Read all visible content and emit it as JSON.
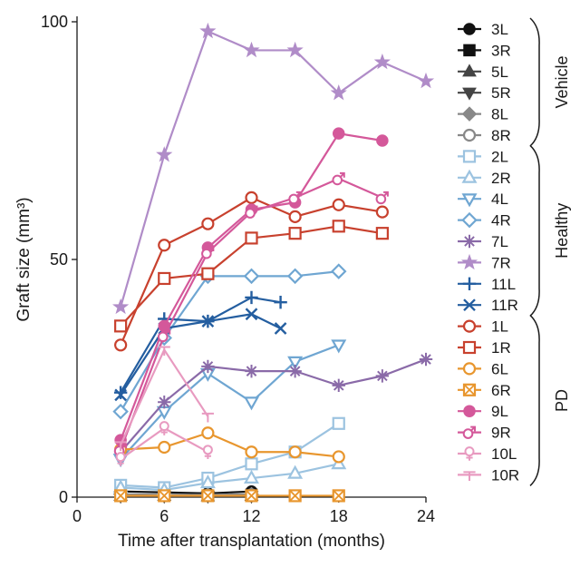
{
  "chart_data": {
    "type": "line",
    "title": "",
    "xlabel": "Time after transplantation (months)",
    "ylabel": "Graft size (mm³)",
    "xlim": [
      0,
      24
    ],
    "ylim": [
      0,
      100
    ],
    "xticks": [
      0,
      6,
      12,
      18,
      24
    ],
    "yticks": [
      0,
      50,
      100
    ],
    "grid": false,
    "legend_position": "right",
    "groups": [
      {
        "name": "Vehicle",
        "series": [
          "3L",
          "3R",
          "5L",
          "5R",
          "8L",
          "8R"
        ]
      },
      {
        "name": "Healthy",
        "series": [
          "2L",
          "2R",
          "4L",
          "4R",
          "7L",
          "7R",
          "11L",
          "11R"
        ]
      },
      {
        "name": "PD",
        "series": [
          "1L",
          "1R",
          "6L",
          "6R",
          "9L",
          "9R",
          "10L",
          "10R"
        ]
      }
    ],
    "series": [
      {
        "name": "3L",
        "color": "#111111",
        "marker": "circle-filled",
        "points": [
          [
            3,
            1.2
          ],
          [
            6,
            1.0
          ],
          [
            9,
            0.8
          ],
          [
            12,
            1.2
          ]
        ]
      },
      {
        "name": "3R",
        "color": "#111111",
        "marker": "square-filled",
        "points": [
          [
            3,
            0.4
          ],
          [
            6,
            0.3
          ],
          [
            9,
            0.3
          ],
          [
            12,
            0.5
          ]
        ]
      },
      {
        "name": "5L",
        "color": "#444444",
        "marker": "triangle-up-filled",
        "points": [
          [
            3,
            0.3
          ],
          [
            6,
            0.3
          ],
          [
            9,
            0.2
          ],
          [
            12,
            0.3
          ]
        ]
      },
      {
        "name": "5R",
        "color": "#444444",
        "marker": "triangle-down-filled",
        "points": [
          [
            3,
            0.2
          ],
          [
            6,
            0.2
          ],
          [
            9,
            0.2
          ],
          [
            12,
            0.2
          ]
        ]
      },
      {
        "name": "8L",
        "color": "#888888",
        "marker": "diamond-filled",
        "points": [
          [
            3,
            0.6
          ],
          [
            6,
            0.5
          ],
          [
            9,
            0.5
          ],
          [
            12,
            0.6
          ]
        ]
      },
      {
        "name": "8R",
        "color": "#888888",
        "marker": "circle-open",
        "points": [
          [
            3,
            0.5
          ],
          [
            6,
            0.4
          ],
          [
            9,
            0.4
          ],
          [
            12,
            0.5
          ]
        ]
      },
      {
        "name": "2L",
        "color": "#9cc3e0",
        "marker": "square-open",
        "points": [
          [
            3,
            2.5
          ],
          [
            6,
            2.0
          ],
          [
            9,
            4.0
          ],
          [
            12,
            7.0
          ],
          [
            15,
            9.5
          ],
          [
            18,
            15.5
          ]
        ]
      },
      {
        "name": "2R",
        "color": "#9cc3e0",
        "marker": "triangle-up-open",
        "points": [
          [
            3,
            2.0
          ],
          [
            6,
            1.5
          ],
          [
            9,
            3.0
          ],
          [
            12,
            4.0
          ],
          [
            15,
            5.0
          ],
          [
            18,
            7.0
          ]
        ]
      },
      {
        "name": "4L",
        "color": "#6fa6d2",
        "marker": "triangle-down-open",
        "points": [
          [
            3,
            8.0
          ],
          [
            6,
            18.0
          ],
          [
            9,
            26.0
          ],
          [
            12,
            20.0
          ],
          [
            15,
            28.5
          ],
          [
            18,
            32.0
          ]
        ]
      },
      {
        "name": "4R",
        "color": "#6fa6d2",
        "marker": "diamond-open",
        "points": [
          [
            3,
            18.0
          ],
          [
            6,
            33.5
          ],
          [
            9,
            46.5
          ],
          [
            12,
            46.5
          ],
          [
            15,
            46.5
          ],
          [
            18,
            47.5
          ]
        ]
      },
      {
        "name": "7L",
        "color": "#8a6aa8",
        "marker": "asterisk",
        "points": [
          [
            3,
            9.5
          ],
          [
            6,
            20.0
          ],
          [
            9,
            27.5
          ],
          [
            12,
            26.5
          ],
          [
            15,
            26.5
          ],
          [
            18,
            23.5
          ],
          [
            21,
            25.5
          ],
          [
            24,
            29.0
          ]
        ]
      },
      {
        "name": "7R",
        "color": "#b08cc8",
        "marker": "star",
        "points": [
          [
            3,
            40.0
          ],
          [
            6,
            72.0
          ],
          [
            9,
            98.0
          ],
          [
            12,
            94.0
          ],
          [
            15,
            94.0
          ],
          [
            18,
            85.0
          ],
          [
            21,
            91.5
          ],
          [
            24,
            87.5
          ]
        ]
      },
      {
        "name": "11L",
        "color": "#245ea0",
        "marker": "plus",
        "points": [
          [
            3,
            22.0
          ],
          [
            6,
            37.5
          ],
          [
            9,
            37.0
          ],
          [
            12,
            42.0
          ],
          [
            14,
            41.0
          ]
        ]
      },
      {
        "name": "11R",
        "color": "#245ea0",
        "marker": "x",
        "points": [
          [
            3,
            21.5
          ],
          [
            6,
            35.5
          ],
          [
            9,
            37.0
          ],
          [
            12,
            38.5
          ],
          [
            14,
            35.5
          ]
        ]
      },
      {
        "name": "1L",
        "color": "#c8412e",
        "marker": "circle-open",
        "points": [
          [
            3,
            32.0
          ],
          [
            6,
            53.0
          ],
          [
            9,
            57.5
          ],
          [
            12,
            63.0
          ],
          [
            15,
            59.0
          ],
          [
            18,
            61.5
          ],
          [
            21,
            60.0
          ]
        ]
      },
      {
        "name": "1R",
        "color": "#c8412e",
        "marker": "square-open",
        "points": [
          [
            3,
            36.0
          ],
          [
            6,
            46.0
          ],
          [
            9,
            47.0
          ],
          [
            12,
            54.5
          ],
          [
            15,
            55.5
          ],
          [
            18,
            57.0
          ],
          [
            21,
            55.5
          ]
        ]
      },
      {
        "name": "6L",
        "color": "#e8962e",
        "marker": "circle-open",
        "points": [
          [
            3,
            10.0
          ],
          [
            6,
            10.5
          ],
          [
            9,
            13.5
          ],
          [
            12,
            9.5
          ],
          [
            15,
            9.5
          ],
          [
            18,
            8.5
          ]
        ]
      },
      {
        "name": "6R",
        "color": "#e8962e",
        "marker": "square-x",
        "points": [
          [
            3,
            0.3
          ],
          [
            6,
            0.3
          ],
          [
            9,
            0.3
          ],
          [
            12,
            0.3
          ],
          [
            15,
            0.3
          ],
          [
            18,
            0.3
          ]
        ]
      },
      {
        "name": "9L",
        "color": "#d4589a",
        "marker": "circle-filled",
        "points": [
          [
            3,
            12.0
          ],
          [
            6,
            36.0
          ],
          [
            9,
            52.5
          ],
          [
            12,
            60.5
          ],
          [
            15,
            62.0
          ],
          [
            18,
            76.5
          ],
          [
            21,
            75.0
          ]
        ]
      },
      {
        "name": "9R",
        "color": "#d4589a",
        "marker": "male",
        "points": [
          [
            3,
            10.0
          ],
          [
            6,
            34.0
          ],
          [
            9,
            51.5
          ],
          [
            12,
            60.0
          ],
          [
            15,
            63.0
          ],
          [
            18,
            67.0
          ],
          [
            21,
            63.0
          ]
        ]
      },
      {
        "name": "10L",
        "color": "#e89ac0",
        "marker": "female",
        "points": [
          [
            3,
            8.0
          ],
          [
            6,
            14.5
          ],
          [
            9,
            9.5
          ]
        ]
      },
      {
        "name": "10R",
        "color": "#e89ac0",
        "marker": "tee",
        "points": [
          [
            3,
            11.0
          ],
          [
            6,
            31.0
          ],
          [
            9,
            17.0
          ]
        ]
      }
    ]
  }
}
